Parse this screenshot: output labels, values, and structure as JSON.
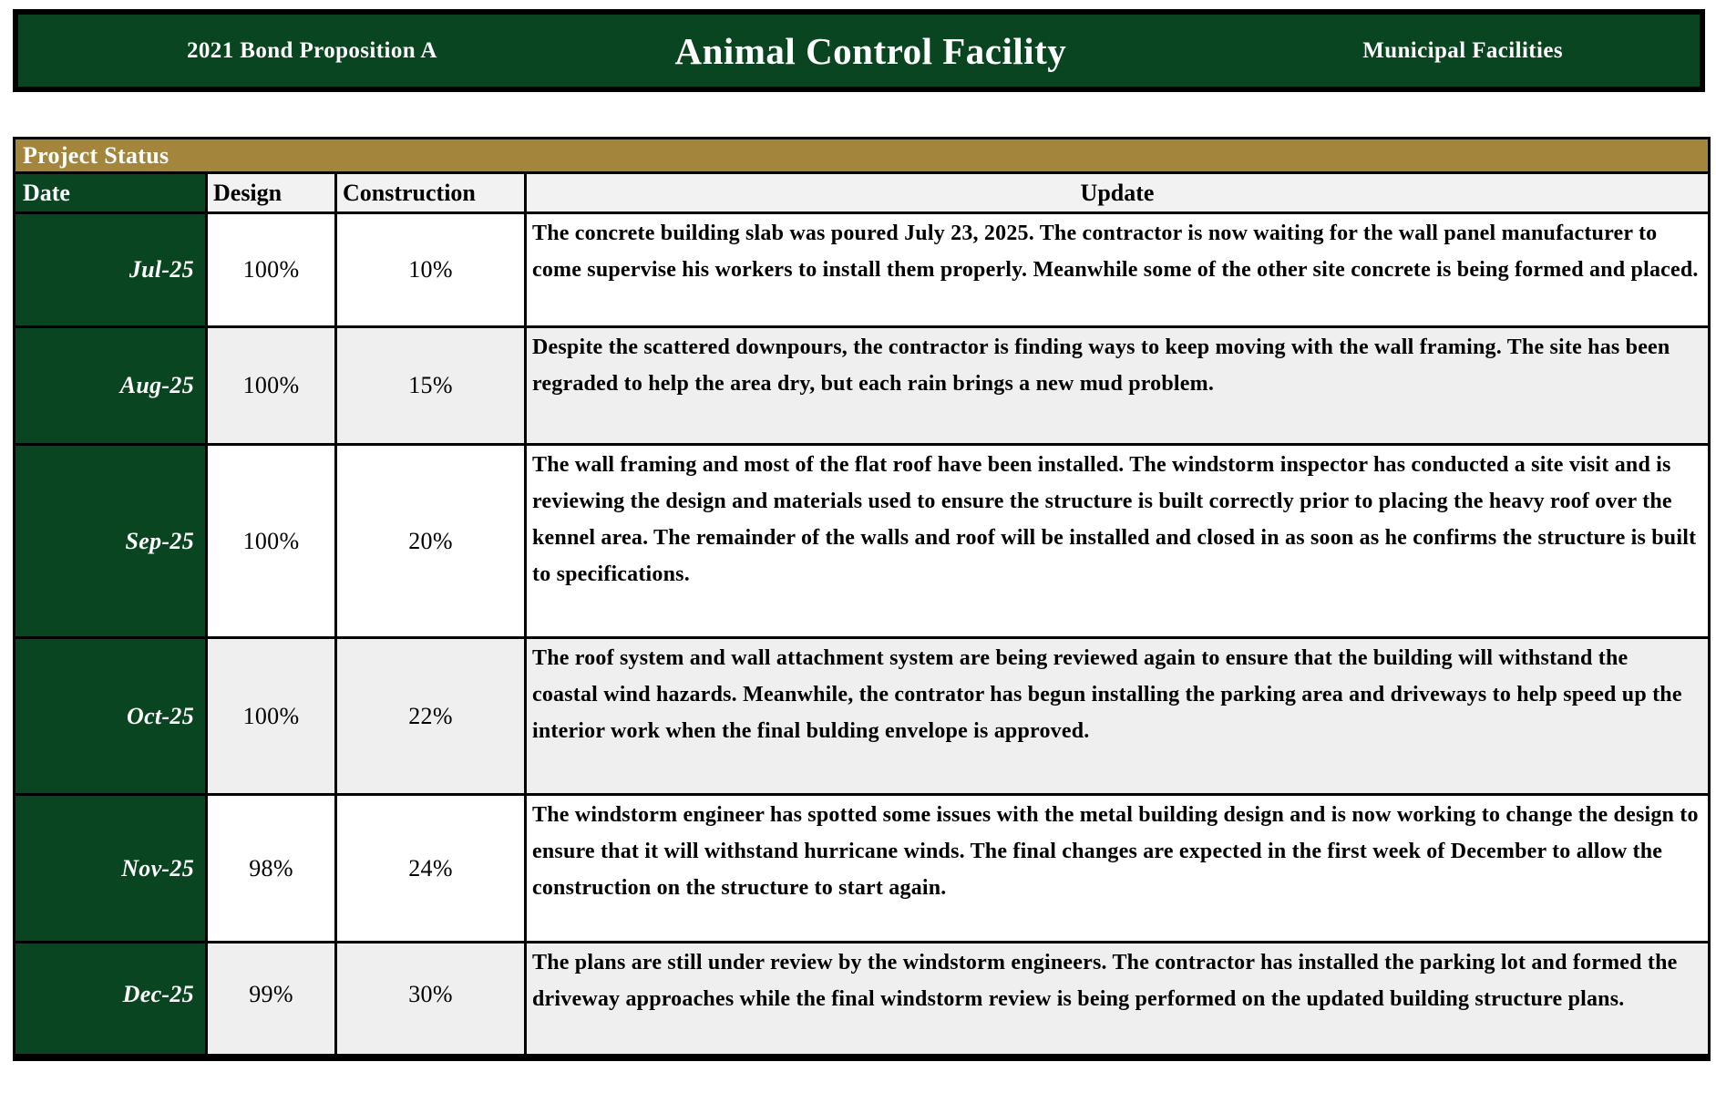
{
  "banner": {
    "left": "2021 Bond Proposition A",
    "title": "Animal Control Facility",
    "right": "Municipal Facilities"
  },
  "section_title": "Project Status",
  "table": {
    "headers": {
      "date": "Date",
      "design": "Design",
      "construction": "Construction",
      "update": "Update"
    },
    "rows": [
      {
        "date": "Jul-25",
        "design": "100%",
        "construction": "10%",
        "update": "The concrete building slab was poured July 23, 2025. The contractor is now waiting for the wall panel manufacturer to come supervise his workers to install them properly. Meanwhile some of the other site concrete is being formed and placed."
      },
      {
        "date": "Aug-25",
        "design": "100%",
        "construction": "15%",
        "update": "Despite the scattered downpours, the contractor is finding ways to keep moving with the wall framing. The site has been regraded to help the area dry, but each rain brings a new mud problem."
      },
      {
        "date": "Sep-25",
        "design": "100%",
        "construction": "20%",
        "update": "The wall framing and most of the flat roof have been installed. The windstorm inspector has conducted a site visit and is reviewing the design and materials used to ensure the structure is built correctly prior to placing the heavy roof over the kennel area. The remainder of the walls and roof will be installed and closed in as soon as he confirms the structure is built to specifications."
      },
      {
        "date": "Oct-25",
        "design": "100%",
        "construction": "22%",
        "update": "The roof system and wall attachment system are being reviewed again to ensure that the building will withstand the coastal wind hazards. Meanwhile, the contrator has begun installing the parking area and driveways to help speed up the interior work when the final bulding envelope is approved."
      },
      {
        "date": "Nov-25",
        "design": "98%",
        "construction": "24%",
        "update": "The windstorm engineer has spotted some issues with the metal building design and is now working to change the design to ensure that it will withstand hurricane winds. The final changes are expected in the first week of December to allow the construction on the structure to start again."
      },
      {
        "date": "Dec-25",
        "design": "99%",
        "construction": "30%",
        "update": "The plans are still under review by the windstorm engineers. The contractor has installed the parking lot and formed the driveway approaches while the final windstorm review is being performed on the updated building structure plans."
      }
    ]
  },
  "colors": {
    "dark_green": "#0a4522",
    "gold": "#a3853c",
    "row_alt": "#efefef",
    "header_bg": "#f2f2f2"
  }
}
